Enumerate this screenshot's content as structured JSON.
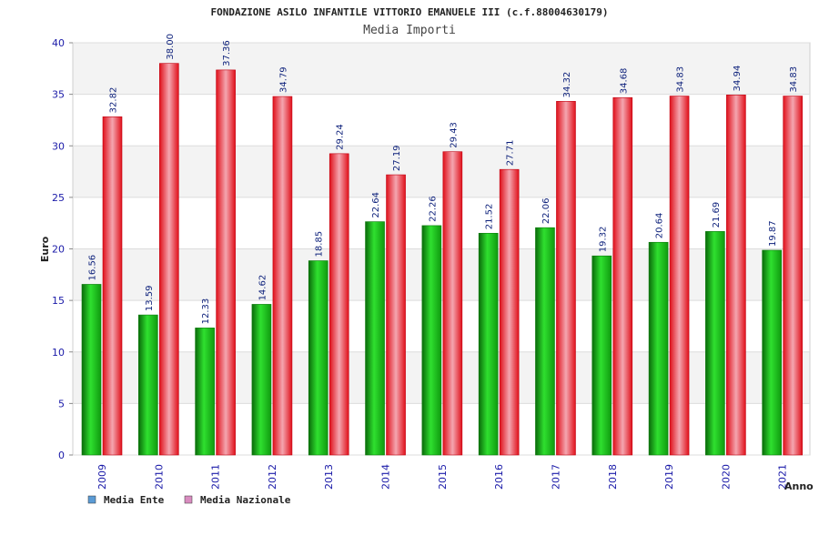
{
  "chart_data": {
    "type": "bar",
    "title": "FONDAZIONE ASILO INFANTILE VITTORIO EMANUELE III (c.f.88004630179)",
    "subtitle": "Media Importi",
    "xlabel": "Anno",
    "ylabel": "Euro",
    "ylim": [
      0,
      40
    ],
    "yticks": [
      "0",
      "5",
      "10",
      "15",
      "20",
      "25",
      "30",
      "35",
      "40"
    ],
    "categories": [
      "2009",
      "2010",
      "2011",
      "2012",
      "2013",
      "2014",
      "2015",
      "2016",
      "2017",
      "2018",
      "2019",
      "2020",
      "2021"
    ],
    "series": [
      {
        "name": "Media Ente",
        "color": "#16b816",
        "legend_color": "#5b9bd5",
        "values": [
          16.56,
          13.59,
          12.33,
          14.62,
          18.85,
          22.64,
          22.26,
          21.52,
          22.06,
          19.32,
          20.64,
          21.69,
          19.87
        ],
        "labels": [
          "16.56",
          "13.59",
          "12.33",
          "14.62",
          "18.85",
          "22.64",
          "22.26",
          "21.52",
          "22.06",
          "19.32",
          "20.64",
          "21.69",
          "19.87"
        ]
      },
      {
        "name": "Media Nazionale",
        "color": "#e8101e",
        "legend_color": "#d98cc0",
        "values": [
          32.82,
          38.0,
          37.36,
          34.79,
          29.24,
          27.19,
          29.43,
          27.71,
          34.32,
          34.68,
          34.83,
          34.94,
          34.83
        ],
        "labels": [
          "32.82",
          "38.00",
          "37.36",
          "34.79",
          "29.24",
          "27.19",
          "29.43",
          "27.71",
          "34.32",
          "34.68",
          "34.83",
          "34.94",
          "34.83"
        ]
      }
    ],
    "grid": true,
    "legend_position": "bottom-left"
  }
}
